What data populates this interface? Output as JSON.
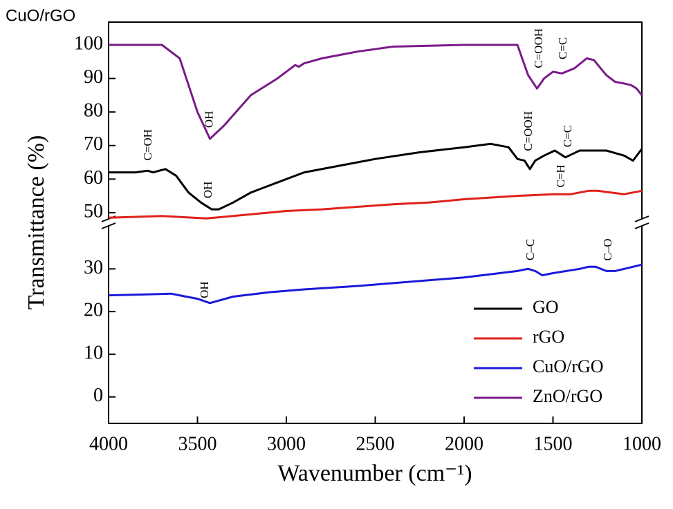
{
  "chart_data": {
    "type": "line",
    "caption": "CuO/rGO",
    "x_label": "Wavenumber (cm⁻¹)",
    "y_label": "Transmittance (%)",
    "xlim": [
      4000,
      1000
    ],
    "xticks": [
      4000,
      3500,
      3000,
      2500,
      2000,
      1500,
      1000
    ],
    "ylim": [
      -6.2,
      40.9
    ],
    "yticks": [
      0,
      10,
      20,
      30
    ],
    "y2lim": [
      47.1,
      106.8
    ],
    "y2ticks": [
      50,
      60,
      70,
      80,
      90,
      100
    ],
    "legend": "lower right",
    "series": [
      {
        "name": "GO",
        "color": "#000000",
        "axis": "y2",
        "x": [
          4000,
          3850,
          3780,
          3750,
          3680,
          3620,
          3550,
          3480,
          3420,
          3380,
          3300,
          3200,
          3050,
          2900,
          2700,
          2500,
          2250,
          2000,
          1850,
          1750,
          1700,
          1660,
          1630,
          1600,
          1550,
          1490,
          1430,
          1350,
          1200,
          1100,
          1050,
          1000
        ],
        "values": [
          62,
          62,
          62.5,
          62,
          63,
          61,
          56,
          53,
          51,
          51,
          53,
          56,
          59,
          62,
          64,
          66,
          68,
          69.5,
          70.5,
          69.5,
          66,
          65.5,
          63,
          65.5,
          67,
          68.5,
          66.5,
          68.5,
          68.5,
          67,
          65.5,
          69
        ]
      },
      {
        "name": "rGO",
        "color": "#e0201b",
        "axis": "y2",
        "x": [
          4000,
          3700,
          3450,
          3300,
          3000,
          2800,
          2400,
          2200,
          2000,
          1700,
          1500,
          1400,
          1300,
          1250,
          1100,
          1000
        ],
        "values": [
          48.5,
          49,
          48.3,
          49,
          50.5,
          51,
          52.5,
          53,
          54,
          55,
          55.5,
          55.5,
          56.5,
          56.5,
          55.5,
          56.5
        ]
      },
      {
        "name": "CuO/rGO",
        "color": "#1a1adb",
        "x": [
          4000,
          3800,
          3650,
          3500,
          3430,
          3300,
          3100,
          2900,
          2600,
          2300,
          2000,
          1700,
          1640,
          1600,
          1560,
          1500,
          1350,
          1300,
          1260,
          1200,
          1150,
          1050,
          1000
        ],
        "values": [
          23.8,
          24,
          24.2,
          23,
          22,
          23.5,
          24.5,
          25.2,
          26,
          27,
          28,
          29.5,
          30,
          29.5,
          28.5,
          29,
          30,
          30.5,
          30.5,
          29.5,
          29.5,
          30.5,
          31
        ]
      },
      {
        "name": "ZnO/rGO",
        "color": "#7b1a8a",
        "axis": "y2",
        "x": [
          4000,
          3700,
          3600,
          3500,
          3430,
          3350,
          3200,
          3050,
          2950,
          2930,
          2900,
          2800,
          2600,
          2400,
          2000,
          1700,
          1680,
          1640,
          1590,
          1550,
          1500,
          1450,
          1380,
          1310,
          1270,
          1200,
          1150,
          1100,
          1060,
          1030,
          1000
        ],
        "values": [
          100,
          100,
          96,
          80,
          72,
          76,
          85,
          90,
          94,
          93.5,
          94.5,
          96,
          98,
          99.5,
          100,
          100,
          97,
          91,
          87,
          90,
          92,
          91.5,
          93,
          96,
          95.5,
          91,
          89,
          88.5,
          88,
          87,
          85
        ]
      }
    ],
    "annotations": [
      {
        "text": "OH",
        "x": 3430,
        "y": 77.8,
        "axis": "y2"
      },
      {
        "text": "C=OOH",
        "x": 1576,
        "y": 99,
        "axis": "y2"
      },
      {
        "text": "C=C",
        "x": 1440,
        "y": 99,
        "axis": "y2"
      },
      {
        "text": "C=OH",
        "x": 3774,
        "y": 70.2,
        "axis": "y2"
      },
      {
        "text": "OH",
        "x": 3436,
        "y": 56.8,
        "axis": "y2"
      },
      {
        "text": "C=OOH",
        "x": 1634,
        "y": 74.3,
        "axis": "y2"
      },
      {
        "text": "C=C",
        "x": 1412,
        "y": 72.8,
        "axis": "y2"
      },
      {
        "text": "C=H",
        "x": 1451,
        "y": 60.9,
        "axis": "y2"
      },
      {
        "text": "OH",
        "x": 3455,
        "y": 25.1
      },
      {
        "text": "C–C",
        "x": 1623,
        "y": 34.5
      },
      {
        "text": "C–O",
        "x": 1187,
        "y": 34.5
      }
    ]
  }
}
